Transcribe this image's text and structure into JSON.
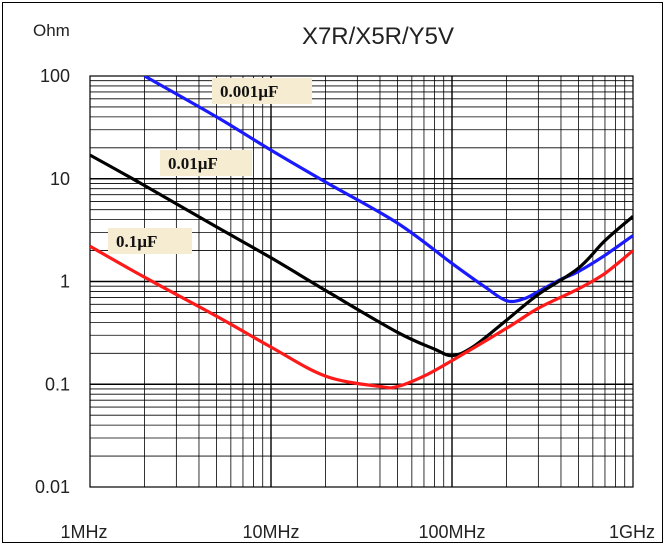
{
  "chart_data": {
    "type": "line",
    "title": "X7R/X5R/Y5V",
    "ylabel": "Ohm",
    "xlabel": "",
    "x_scale": "log",
    "y_scale": "log",
    "xlim": [
      1,
      1000
    ],
    "ylim": [
      0.01,
      100
    ],
    "x_unit": "MHz",
    "x_ticks": [
      {
        "value": 1,
        "label": "1MHz"
      },
      {
        "value": 10,
        "label": "10MHz"
      },
      {
        "value": 100,
        "label": "100MHz"
      },
      {
        "value": 1000,
        "label": "1GHz"
      }
    ],
    "y_ticks": [
      {
        "value": 100,
        "label": "100"
      },
      {
        "value": 10,
        "label": "10"
      },
      {
        "value": 1,
        "label": "1"
      },
      {
        "value": 0.1,
        "label": "0.1"
      },
      {
        "value": 0.01,
        "label": "0.01"
      }
    ],
    "grid": true,
    "series": [
      {
        "name": "0.001µF",
        "color": "#1a1aff",
        "points": [
          [
            2.0,
            100
          ],
          [
            5,
            40
          ],
          [
            10,
            19
          ],
          [
            20,
            9.3
          ],
          [
            50,
            3.7
          ],
          [
            100,
            1.5
          ],
          [
            150,
            0.9
          ],
          [
            200,
            0.65
          ],
          [
            250,
            0.68
          ],
          [
            300,
            0.8
          ],
          [
            400,
            1.05
          ],
          [
            500,
            1.25
          ],
          [
            700,
            1.8
          ],
          [
            1000,
            2.8
          ]
        ]
      },
      {
        "name": "0.01µF",
        "color": "#000000",
        "points": [
          [
            1,
            17
          ],
          [
            2,
            8.6
          ],
          [
            5,
            3.4
          ],
          [
            10,
            1.7
          ],
          [
            20,
            0.82
          ],
          [
            50,
            0.32
          ],
          [
            80,
            0.22
          ],
          [
            100,
            0.19
          ],
          [
            130,
            0.23
          ],
          [
            200,
            0.42
          ],
          [
            300,
            0.75
          ],
          [
            500,
            1.35
          ],
          [
            700,
            2.5
          ],
          [
            1000,
            4.3
          ]
        ]
      },
      {
        "name": "0.1µF",
        "color": "#ff1a1a",
        "points": [
          [
            1,
            2.2
          ],
          [
            2,
            1.1
          ],
          [
            5,
            0.46
          ],
          [
            10,
            0.23
          ],
          [
            20,
            0.12
          ],
          [
            40,
            0.095
          ],
          [
            50,
            0.095
          ],
          [
            70,
            0.12
          ],
          [
            100,
            0.17
          ],
          [
            200,
            0.35
          ],
          [
            300,
            0.55
          ],
          [
            500,
            0.85
          ],
          [
            700,
            1.2
          ],
          [
            1000,
            2.0
          ]
        ]
      }
    ],
    "annotations": [
      {
        "text": "0.001µF",
        "series": 0
      },
      {
        "text": "0.01µF",
        "series": 1
      },
      {
        "text": "0.1µF",
        "series": 2
      }
    ]
  }
}
